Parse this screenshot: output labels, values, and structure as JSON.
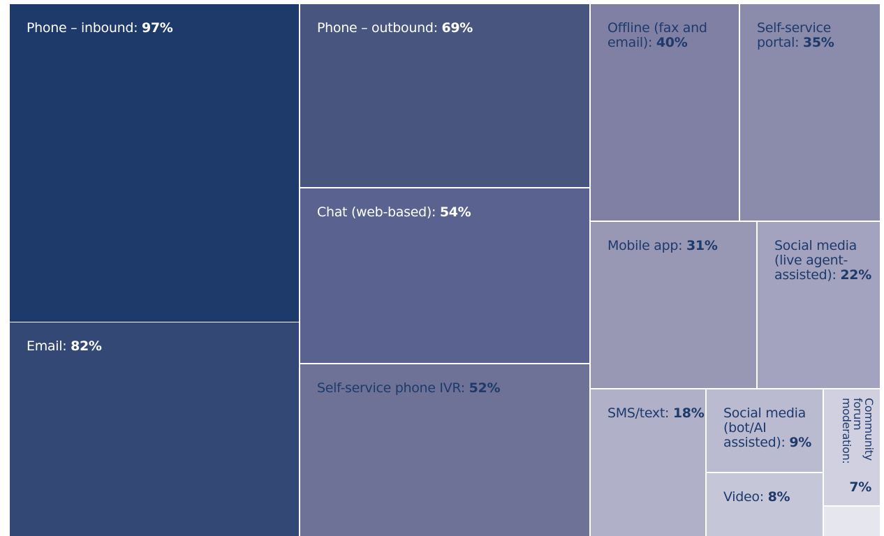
{
  "chart_data": {
    "type": "treemap",
    "categories": [
      "Phone – inbound:",
      "Email:",
      "Phone – outbound:",
      "Chat (web-based):",
      "Self-service phone IVR:",
      "Offline (fax and email):",
      "Self-service portal:",
      "Mobile app:",
      "Social media (live agent-assisted):",
      "SMS/text:",
      "Social media (bot/AI assisted):",
      "Video:",
      "Community forum moderation:"
    ],
    "values": [
      97,
      82,
      69,
      54,
      52,
      40,
      35,
      31,
      22,
      18,
      9,
      8,
      7
    ],
    "value_labels": [
      "97%",
      "82%",
      "69%",
      "54%",
      "52%",
      "40%",
      "35%",
      "31%",
      "22%",
      "18%",
      "9%",
      "8%",
      "7%"
    ],
    "colors": [
      "#1e3a6b",
      "#334874",
      "#48567f",
      "#5a6390",
      "#6e7297",
      "#7f80a4",
      "#8b8cac",
      "#9898b5",
      "#a3a3bf",
      "#b0b0c9",
      "#babad0",
      "#c6c6d9",
      "#d0d0e0"
    ]
  }
}
